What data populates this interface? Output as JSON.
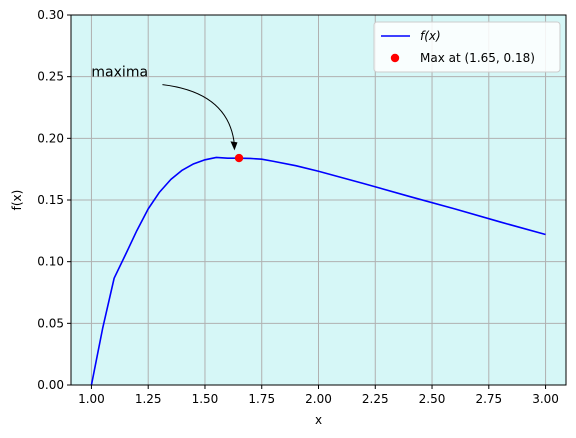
{
  "chart_data": {
    "type": "line",
    "title": "",
    "xlabel": "x",
    "ylabel": "f(x)",
    "xlim": [
      0.91,
      3.09
    ],
    "ylim": [
      0,
      0.3
    ],
    "x_ticks": [
      1.0,
      1.25,
      1.5,
      1.75,
      2.0,
      2.25,
      2.5,
      2.75,
      3.0
    ],
    "x_tick_labels": [
      "1.00",
      "1.25",
      "1.50",
      "1.75",
      "2.00",
      "2.25",
      "2.50",
      "2.75",
      "3.00"
    ],
    "y_ticks": [
      0,
      0.05,
      0.1,
      0.15,
      0.2,
      0.25,
      0.3
    ],
    "y_tick_labels": [
      "0.00",
      "0.05",
      "0.10",
      "0.15",
      "0.20",
      "0.25",
      "0.30"
    ],
    "grid": true,
    "background_color": "#d6f7f7",
    "series": [
      {
        "name": "f(x)",
        "color": "#0000ff",
        "x": [
          1.0,
          1.05,
          1.1,
          1.15,
          1.2,
          1.25,
          1.3,
          1.35,
          1.4,
          1.45,
          1.5,
          1.55,
          1.6,
          1.65,
          1.7,
          1.75,
          1.8,
          1.9,
          2.0,
          2.2,
          2.4,
          2.6,
          2.8,
          3.0
        ],
        "y": [
          0.0,
          0.0465,
          0.0866,
          0.1057,
          0.1252,
          0.1428,
          0.1564,
          0.1667,
          0.1742,
          0.1793,
          0.1826,
          0.1845,
          0.1839,
          0.1839,
          0.1837,
          0.1831,
          0.1814,
          0.1778,
          0.1733,
          0.1633,
          0.1529,
          0.1428,
          0.1322,
          0.122
        ]
      }
    ],
    "highlight_point": {
      "name": "Max at (1.65, 0.18)",
      "x": 1.65,
      "y": 0.184,
      "color": "#ff0000"
    },
    "annotation": {
      "text": "maxima",
      "text_x": 1.0,
      "text_y": 0.25,
      "arrow_to_x": 1.63,
      "arrow_to_y": 0.191
    },
    "legend": {
      "location": "top-right",
      "entries": [
        "f(x)",
        "Max at (1.65, 0.18)"
      ]
    }
  }
}
